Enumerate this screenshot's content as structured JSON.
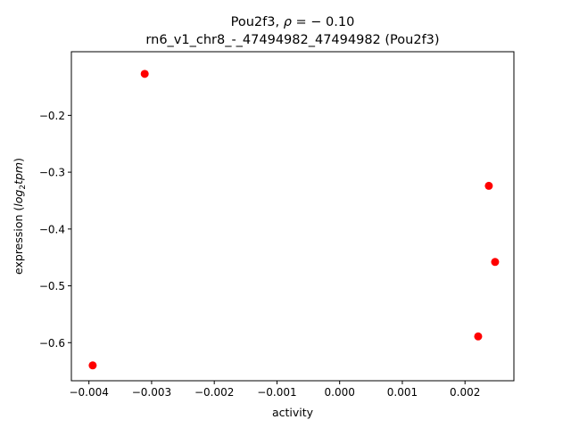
{
  "chart_data": {
    "type": "scatter",
    "title_line1_prefix": "Pou2f3, ",
    "title_line1_rho": "ρ",
    "title_line1_suffix": " = − 0.10",
    "title_line2": "rn6_v1_chr8_-_47494982_47494982 (Pou2f3)",
    "xlabel": "activity",
    "ylabel_prefix": "expression (",
    "ylabel_log": "log",
    "ylabel_sub": "2",
    "ylabel_tpm": "tpm",
    "ylabel_suffix": ")",
    "xlim": [
      -0.00428,
      0.00278
    ],
    "ylim": [
      -0.667,
      -0.088
    ],
    "xticks": [
      {
        "value": -0.004,
        "label": "−0.004"
      },
      {
        "value": -0.003,
        "label": "−0.003"
      },
      {
        "value": -0.002,
        "label": "−0.002"
      },
      {
        "value": -0.001,
        "label": "−0.001"
      },
      {
        "value": 0.0,
        "label": "0.000"
      },
      {
        "value": 0.001,
        "label": "0.001"
      },
      {
        "value": 0.002,
        "label": "0.002"
      }
    ],
    "yticks": [
      {
        "value": -0.2,
        "label": "−0.2"
      },
      {
        "value": -0.3,
        "label": "−0.3"
      },
      {
        "value": -0.4,
        "label": "−0.4"
      },
      {
        "value": -0.5,
        "label": "−0.5"
      },
      {
        "value": -0.6,
        "label": "−0.6"
      }
    ],
    "points": [
      {
        "x": -0.00394,
        "y": -0.64
      },
      {
        "x": -0.00311,
        "y": -0.127
      },
      {
        "x": 0.00238,
        "y": -0.324
      },
      {
        "x": 0.00248,
        "y": -0.458
      },
      {
        "x": 0.00221,
        "y": -0.589
      }
    ],
    "marker_color": "#ff0000",
    "grid": false
  }
}
